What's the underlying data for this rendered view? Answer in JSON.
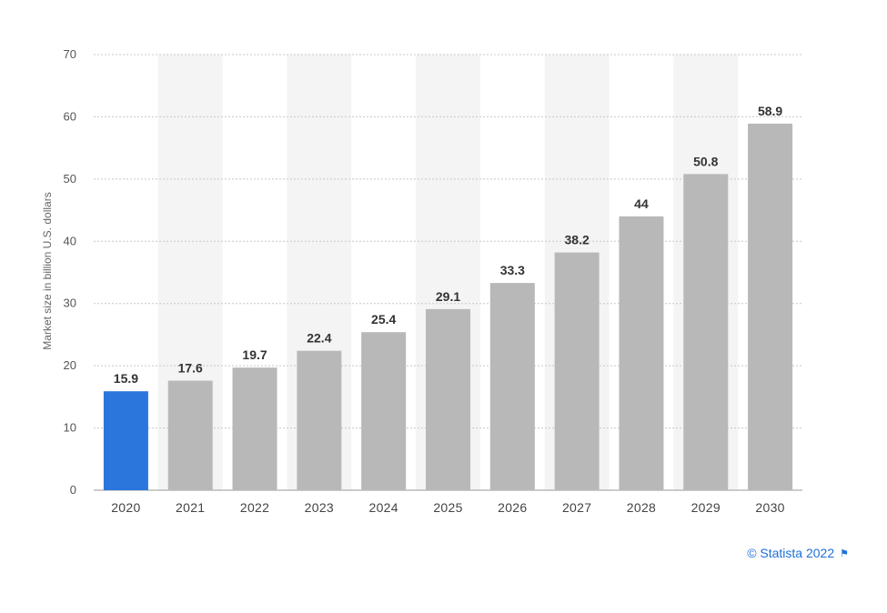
{
  "chart_data": {
    "type": "bar",
    "categories": [
      "2020",
      "2021",
      "2022",
      "2023",
      "2024",
      "2025",
      "2026",
      "2027",
      "2028",
      "2029",
      "2030"
    ],
    "values": [
      15.9,
      17.6,
      19.7,
      22.4,
      25.4,
      29.1,
      33.3,
      38.2,
      44,
      50.8,
      58.9
    ],
    "value_labels": [
      "15.9",
      "17.6",
      "19.7",
      "22.4",
      "25.4",
      "29.1",
      "33.3",
      "38.2",
      "44",
      "50.8",
      "58.9"
    ],
    "ylabel": "Market size in billion U.S. dollars",
    "xlabel": "",
    "ylim": [
      0,
      70
    ],
    "yticks": [
      "0",
      "10",
      "20",
      "30",
      "40",
      "50",
      "60",
      "70"
    ],
    "grid": true,
    "colors": {
      "highlight": "#2a76dc",
      "bar": "#b8b8b8",
      "band": "#f4f4f4",
      "grid": "#c8c8c8"
    },
    "highlight_index": 0
  },
  "credit": {
    "text": "© Statista 2022",
    "icon": "flag-icon"
  }
}
